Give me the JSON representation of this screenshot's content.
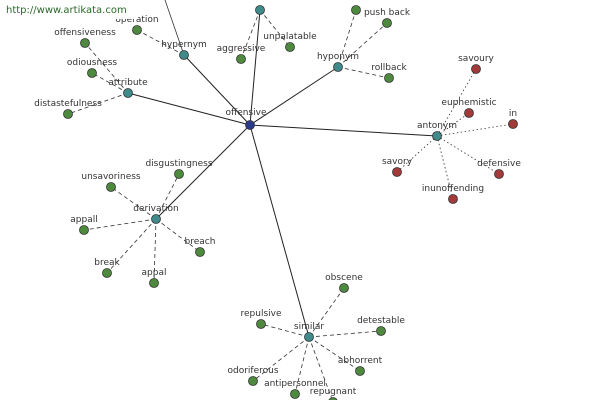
{
  "watermark": "http://www.artikata.com",
  "center": "offensive",
  "hubs": [
    {
      "label": "hypernym",
      "color": "#4e8a3e",
      "leaves": [
        "operation"
      ]
    },
    {
      "label": "attribute",
      "color": "#4e8a3e",
      "leaves": [
        "offensiveness",
        "odiousness",
        "distastefulness"
      ]
    },
    {
      "color": "#4e8a3e",
      "leaves": [
        "aggressive",
        "unpalatable"
      ]
    },
    {
      "label": "hyponym",
      "color": "#4e8a3e",
      "leaves": [
        "push back",
        "rollback"
      ]
    },
    {
      "label": "antonym",
      "color": "#a33a3a",
      "leaves": [
        "savoury",
        "euphemistic",
        "in",
        "savory",
        "defensive",
        "inunoffending"
      ]
    },
    {
      "label": "derivation",
      "color": "#4e8a3e",
      "leaves": [
        "disgustingness",
        "unsavoriness",
        "appall",
        "breach",
        "break",
        "appal"
      ]
    },
    {
      "label": "similar",
      "color": "#4e8a3e",
      "leaves": [
        "obscene",
        "repulsive",
        "detestable",
        "abhorrent",
        "odoriferous",
        "antipersonnel",
        "repugnant"
      ]
    }
  ]
}
